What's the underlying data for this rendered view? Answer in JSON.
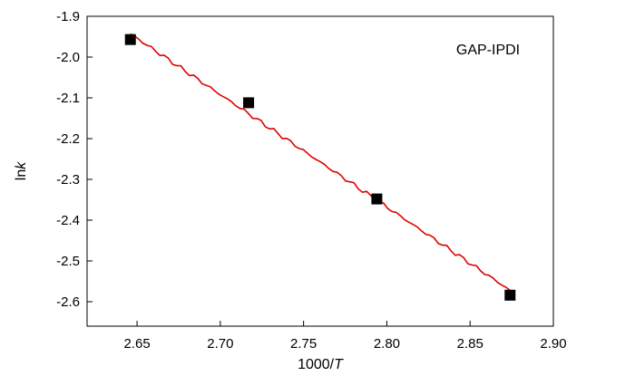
{
  "chart_data": {
    "type": "scatter",
    "title": "",
    "xlabel": {
      "prefix": "1000/",
      "italic": "T"
    },
    "ylabel": {
      "prefix": "ln",
      "italic": "k"
    },
    "xlim": [
      2.62,
      2.9
    ],
    "ylim": [
      -2.66,
      -1.9
    ],
    "xticks": [
      2.65,
      2.7,
      2.75,
      2.8,
      2.85,
      2.9
    ],
    "xtick_labels": [
      "2.65",
      "2.70",
      "2.75",
      "2.80",
      "2.85",
      "2.90"
    ],
    "yticks": [
      -1.9,
      -2.0,
      -2.1,
      -2.2,
      -2.3,
      -2.4,
      -2.5,
      -2.6
    ],
    "ytick_labels": [
      "-1.9",
      "-2.0",
      "-2.1",
      "-2.2",
      "-2.3",
      "-2.4",
      "-2.5",
      "-2.6"
    ],
    "grid": false,
    "annotation": "GAP-IPDI",
    "series": [
      {
        "kind": "points",
        "marker": "square",
        "color": "#000000",
        "x": [
          2.646,
          2.717,
          2.794,
          2.874
        ],
        "y": [
          -1.957,
          -2.112,
          -2.348,
          -2.584
        ]
      },
      {
        "kind": "fit-line",
        "color": "#e00000",
        "x": [
          2.646,
          2.874
        ],
        "y": [
          -1.943,
          -2.572
        ]
      }
    ]
  }
}
